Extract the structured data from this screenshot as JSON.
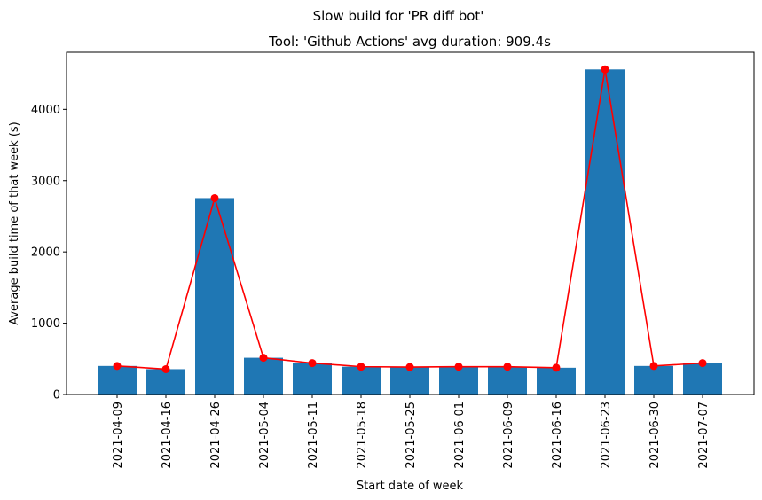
{
  "suptitle": "Slow build for 'PR diff bot'",
  "chart_data": {
    "type": "bar",
    "title": "Tool: 'Github Actions' avg duration: 909.4s",
    "xlabel": "Start date of week",
    "ylabel": "Average build time of that week (s)",
    "categories": [
      "2021-04-09",
      "2021-04-16",
      "2021-04-26",
      "2021-05-04",
      "2021-05-11",
      "2021-05-18",
      "2021-05-25",
      "2021-06-01",
      "2021-06-09",
      "2021-06-16",
      "2021-06-23",
      "2021-06-30",
      "2021-07-07"
    ],
    "values": [
      400,
      355,
      2755,
      515,
      440,
      390,
      385,
      390,
      390,
      375,
      4560,
      400,
      440
    ],
    "ylim": [
      0,
      4800
    ],
    "yticks": [
      0,
      1000,
      2000,
      3000,
      4000
    ],
    "bar_color": "#1f77b4",
    "line_color": "#ff0000",
    "grid": false,
    "overlay": "line with circle markers over bars"
  }
}
